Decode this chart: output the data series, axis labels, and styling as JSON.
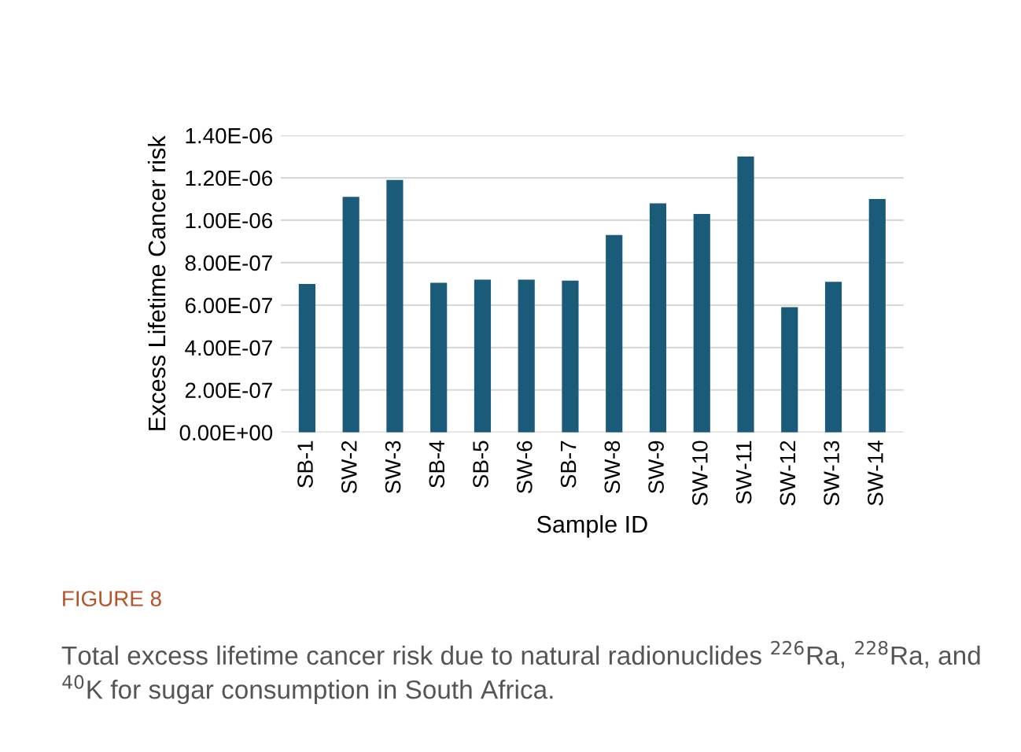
{
  "chart_data": {
    "type": "bar",
    "xlabel": "Sample ID",
    "ylabel": "Excess Lifetime Cancer risk",
    "categories": [
      "SB-1",
      "SW-2",
      "SW-3",
      "SB-4",
      "SB-5",
      "SW-6",
      "SB-7",
      "SW-8",
      "SW-9",
      "SW-10",
      "SW-11",
      "SW-12",
      "SW-13",
      "SW-14"
    ],
    "values": [
      7e-07,
      1.11e-06,
      1.19e-06,
      7.05e-07,
      7.2e-07,
      7.2e-07,
      7.15e-07,
      9.3e-07,
      1.08e-06,
      1.03e-06,
      1.3e-06,
      5.9e-07,
      7.1e-07,
      1.1e-06
    ],
    "color": "#1b5b7a",
    "ylim": [
      0,
      1.4e-06
    ],
    "yticks": [
      {
        "value": 0,
        "label": "0.00E+00"
      },
      {
        "value": 2e-07,
        "label": "2.00E-07"
      },
      {
        "value": 4e-07,
        "label": "4.00E-07"
      },
      {
        "value": 6e-07,
        "label": "6.00E-07"
      },
      {
        "value": 8e-07,
        "label": "8.00E-07"
      },
      {
        "value": 1e-06,
        "label": "1.00E-06"
      },
      {
        "value": 1.2e-06,
        "label": "1.20E-06"
      },
      {
        "value": 1.4e-06,
        "label": "1.40E-06"
      }
    ],
    "grid": "y",
    "annotations": [
      "FIGURE 8",
      "Total excess lifetime cancer risk due to natural radionuclides $^{226}$Ra, $^{228}$Ra, and $^{40}$K for sugar consumption in South Africa."
    ]
  }
}
